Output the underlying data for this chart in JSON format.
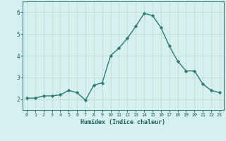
{
  "x": [
    0,
    1,
    2,
    3,
    4,
    5,
    6,
    7,
    8,
    9,
    10,
    11,
    12,
    13,
    14,
    15,
    16,
    17,
    18,
    19,
    20,
    21,
    22,
    23
  ],
  "y": [
    2.05,
    2.05,
    2.15,
    2.15,
    2.2,
    2.4,
    2.3,
    1.95,
    2.65,
    2.75,
    4.0,
    4.35,
    4.8,
    5.35,
    5.95,
    5.85,
    5.3,
    4.45,
    3.75,
    3.3,
    3.3,
    2.7,
    2.4,
    2.3
  ],
  "line_color": "#2e7d6e",
  "marker": "D",
  "marker_size": 2.2,
  "bg_color": "#d6efef",
  "grid_color": "#c4d8d6",
  "xlabel": "Humidex (Indice chaleur)",
  "xlabel_color": "#1a5c5c",
  "tick_color": "#1a5c5c",
  "ylim": [
    1.5,
    6.5
  ],
  "xlim": [
    -0.5,
    23.5
  ],
  "yticks": [
    2,
    3,
    4,
    5,
    6
  ],
  "xticks": [
    0,
    1,
    2,
    3,
    4,
    5,
    6,
    7,
    8,
    9,
    10,
    11,
    12,
    13,
    14,
    15,
    16,
    17,
    18,
    19,
    20,
    21,
    22,
    23
  ],
  "spine_color": "#3a7a7a",
  "line_width": 1.0
}
